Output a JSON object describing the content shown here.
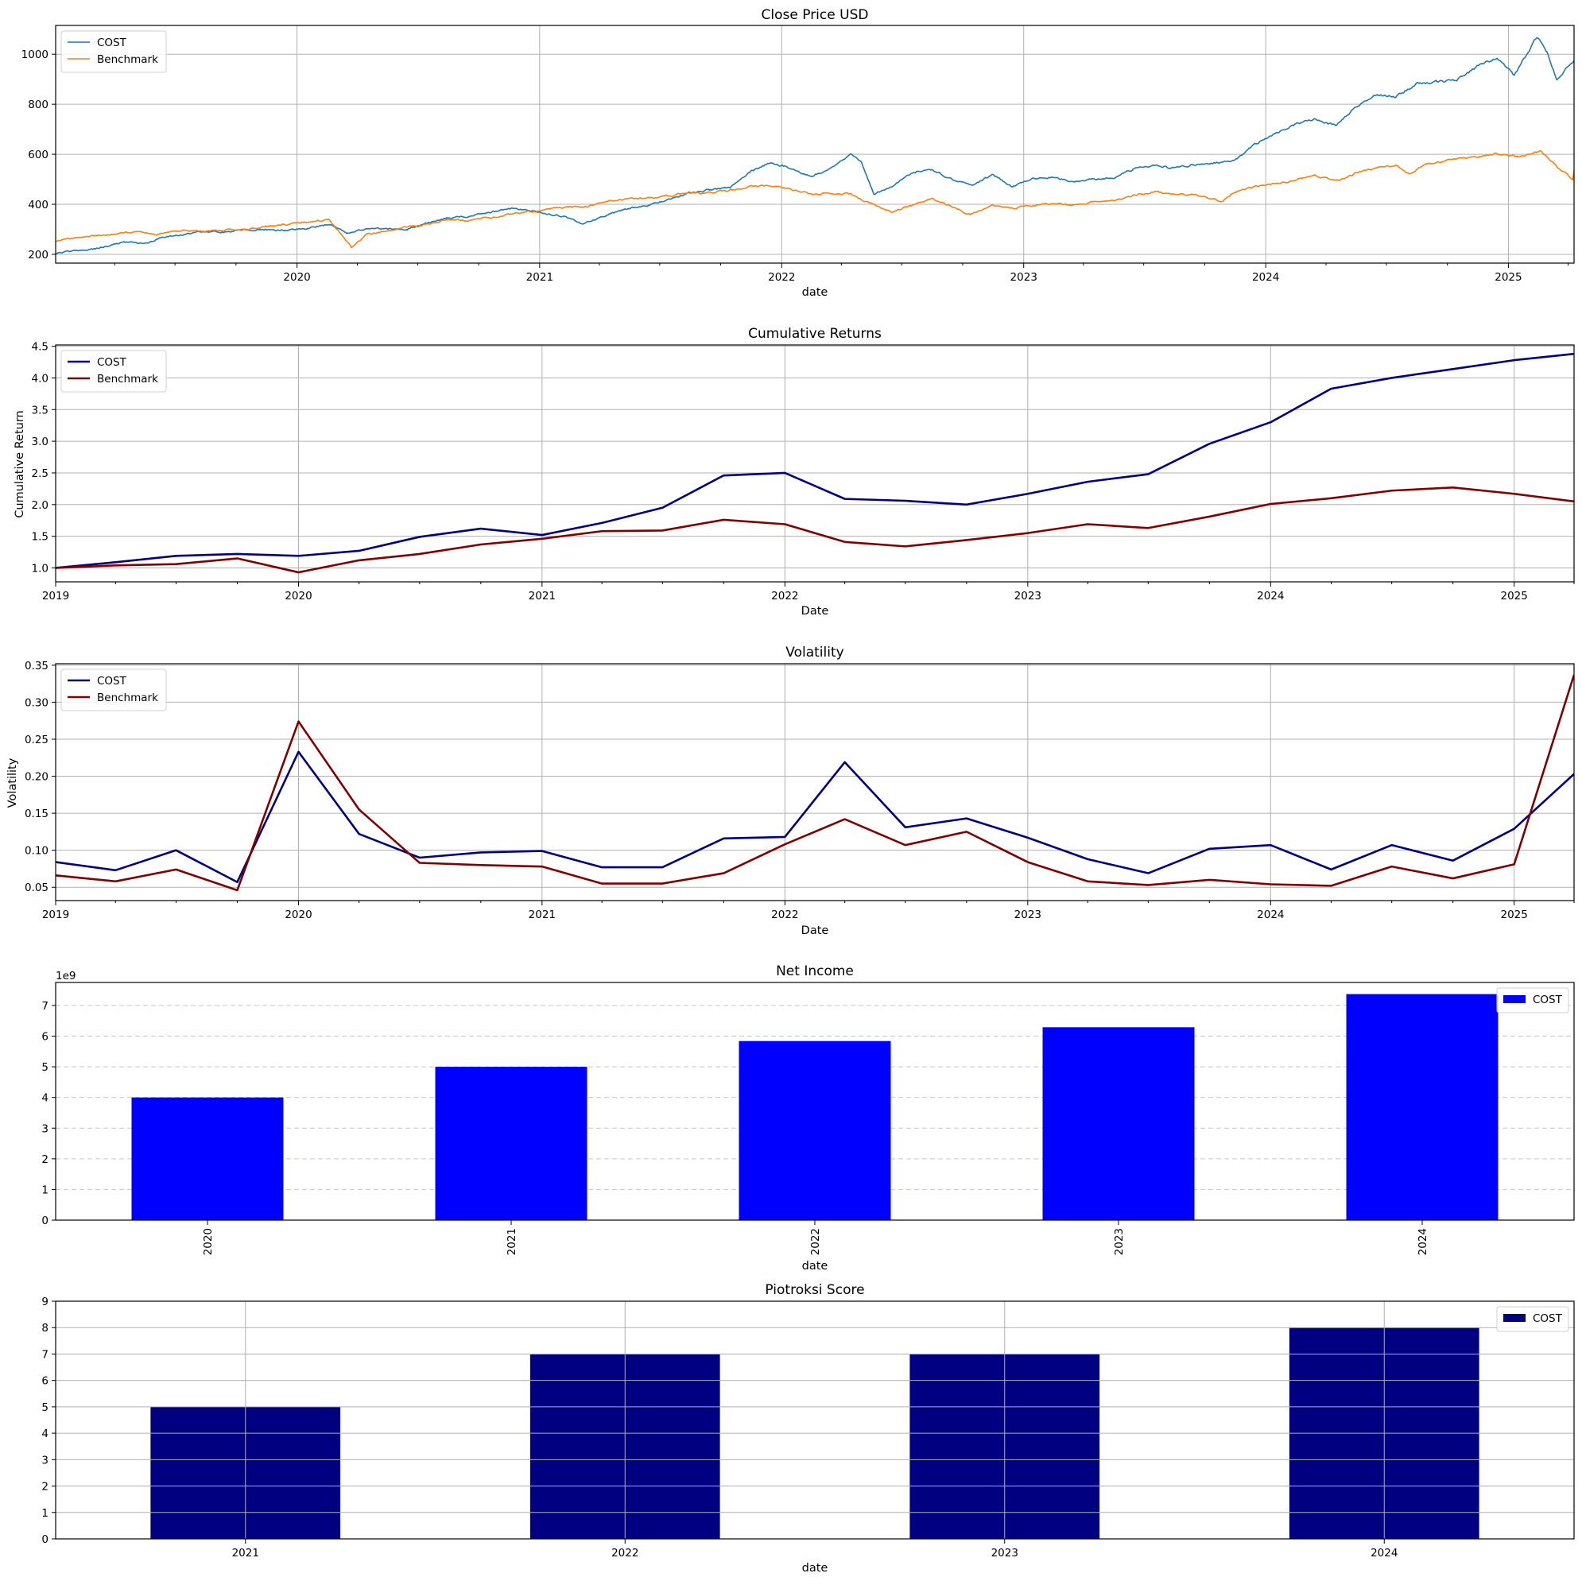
{
  "figure": {
    "background": "#ffffff"
  },
  "chart_data": [
    {
      "id": "close",
      "type": "line",
      "title": "Close Price USD",
      "xlabel": "date",
      "ylabel": "",
      "xaxis": "date",
      "xlim": [
        "2019-01-02",
        "2025-04-10"
      ],
      "ylim": [
        165,
        1115
      ],
      "yticks": [
        200,
        400,
        600,
        800,
        1000
      ],
      "xticks": [
        "2020",
        "2021",
        "2022",
        "2023",
        "2024",
        "2025"
      ],
      "grid": "both-solid",
      "legend": "top-left",
      "series": [
        {
          "name": "COST",
          "color": "#1f77b4",
          "width": 1.6,
          "daily": true,
          "points": [
            [
              "2019-01-02",
              205
            ],
            [
              "2019-03-01",
              222
            ],
            [
              "2019-04-15",
              248
            ],
            [
              "2019-05-15",
              242
            ],
            [
              "2019-06-15",
              268
            ],
            [
              "2019-07-15",
              278
            ],
            [
              "2019-08-15",
              292
            ],
            [
              "2019-09-15",
              290
            ],
            [
              "2019-10-15",
              298
            ],
            [
              "2019-11-15",
              300
            ],
            [
              "2019-12-15",
              296
            ],
            [
              "2020-01-15",
              305
            ],
            [
              "2020-02-20",
              320
            ],
            [
              "2020-03-16",
              285
            ],
            [
              "2020-04-15",
              305
            ],
            [
              "2020-05-15",
              302
            ],
            [
              "2020-06-15",
              300
            ],
            [
              "2020-07-15",
              325
            ],
            [
              "2020-08-15",
              345
            ],
            [
              "2020-09-15",
              352
            ],
            [
              "2020-10-15",
              365
            ],
            [
              "2020-11-15",
              385
            ],
            [
              "2020-12-15",
              378
            ],
            [
              "2021-01-15",
              362
            ],
            [
              "2021-02-15",
              345
            ],
            [
              "2021-03-05",
              320
            ],
            [
              "2021-04-15",
              360
            ],
            [
              "2021-05-15",
              385
            ],
            [
              "2021-06-15",
              395
            ],
            [
              "2021-07-15",
              420
            ],
            [
              "2021-08-15",
              445
            ],
            [
              "2021-09-15",
              458
            ],
            [
              "2021-10-15",
              465
            ],
            [
              "2021-11-15",
              530
            ],
            [
              "2021-12-15",
              565
            ],
            [
              "2022-01-15",
              545
            ],
            [
              "2022-02-15",
              510
            ],
            [
              "2022-03-15",
              545
            ],
            [
              "2022-04-15",
              600
            ],
            [
              "2022-05-01",
              565
            ],
            [
              "2022-05-20",
              440
            ],
            [
              "2022-06-15",
              470
            ],
            [
              "2022-07-15",
              525
            ],
            [
              "2022-08-15",
              540
            ],
            [
              "2022-09-15",
              500
            ],
            [
              "2022-10-15",
              475
            ],
            [
              "2022-11-15",
              520
            ],
            [
              "2022-12-15",
              470
            ],
            [
              "2023-01-15",
              500
            ],
            [
              "2023-02-15",
              510
            ],
            [
              "2023-03-15",
              490
            ],
            [
              "2023-04-15",
              500
            ],
            [
              "2023-05-15",
              505
            ],
            [
              "2023-06-15",
              540
            ],
            [
              "2023-07-15",
              555
            ],
            [
              "2023-08-15",
              545
            ],
            [
              "2023-09-15",
              560
            ],
            [
              "2023-10-15",
              565
            ],
            [
              "2023-11-15",
              575
            ],
            [
              "2023-12-15",
              640
            ],
            [
              "2024-01-15",
              680
            ],
            [
              "2024-02-15",
              720
            ],
            [
              "2024-03-15",
              740
            ],
            [
              "2024-04-15",
              715
            ],
            [
              "2024-05-15",
              785
            ],
            [
              "2024-06-15",
              840
            ],
            [
              "2024-07-15",
              830
            ],
            [
              "2024-08-15",
              880
            ],
            [
              "2024-09-15",
              890
            ],
            [
              "2024-10-15",
              895
            ],
            [
              "2024-11-15",
              950
            ],
            [
              "2024-12-15",
              985
            ],
            [
              "2025-01-10",
              915
            ],
            [
              "2025-02-13",
              1070
            ],
            [
              "2025-02-28",
              1010
            ],
            [
              "2025-03-15",
              900
            ],
            [
              "2025-04-10",
              975
            ]
          ]
        },
        {
          "name": "Benchmark",
          "color": "#ff7f0e",
          "width": 1.6,
          "daily": true,
          "points": [
            [
              "2019-01-02",
              252
            ],
            [
              "2019-03-01",
              275
            ],
            [
              "2019-05-01",
              290
            ],
            [
              "2019-06-03",
              278
            ],
            [
              "2019-07-15",
              298
            ],
            [
              "2019-08-15",
              292
            ],
            [
              "2019-09-15",
              298
            ],
            [
              "2019-10-15",
              302
            ],
            [
              "2019-11-15",
              310
            ],
            [
              "2019-12-15",
              320
            ],
            [
              "2020-01-15",
              330
            ],
            [
              "2020-02-19",
              338
            ],
            [
              "2020-03-23",
              228
            ],
            [
              "2020-04-15",
              280
            ],
            [
              "2020-05-15",
              295
            ],
            [
              "2020-06-15",
              310
            ],
            [
              "2020-07-15",
              320
            ],
            [
              "2020-08-15",
              340
            ],
            [
              "2020-09-15",
              335
            ],
            [
              "2020-10-15",
              345
            ],
            [
              "2020-11-15",
              360
            ],
            [
              "2020-12-15",
              370
            ],
            [
              "2021-01-15",
              380
            ],
            [
              "2021-02-15",
              390
            ],
            [
              "2021-03-15",
              390
            ],
            [
              "2021-04-15",
              415
            ],
            [
              "2021-05-15",
              420
            ],
            [
              "2021-06-15",
              425
            ],
            [
              "2021-07-15",
              435
            ],
            [
              "2021-08-15",
              445
            ],
            [
              "2021-09-15",
              445
            ],
            [
              "2021-10-15",
              455
            ],
            [
              "2021-11-15",
              470
            ],
            [
              "2021-12-15",
              475
            ],
            [
              "2022-01-15",
              460
            ],
            [
              "2022-02-15",
              440
            ],
            [
              "2022-03-15",
              445
            ],
            [
              "2022-04-15",
              440
            ],
            [
              "2022-05-15",
              405
            ],
            [
              "2022-06-16",
              370
            ],
            [
              "2022-07-15",
              395
            ],
            [
              "2022-08-15",
              425
            ],
            [
              "2022-09-15",
              390
            ],
            [
              "2022-10-12",
              358
            ],
            [
              "2022-11-15",
              395
            ],
            [
              "2022-12-15",
              385
            ],
            [
              "2023-01-15",
              395
            ],
            [
              "2023-02-15",
              405
            ],
            [
              "2023-03-15",
              395
            ],
            [
              "2023-04-15",
              410
            ],
            [
              "2023-05-15",
              415
            ],
            [
              "2023-06-15",
              435
            ],
            [
              "2023-07-15",
              450
            ],
            [
              "2023-08-15",
              440
            ],
            [
              "2023-09-15",
              440
            ],
            [
              "2023-10-27",
              412
            ],
            [
              "2023-11-15",
              450
            ],
            [
              "2023-12-15",
              470
            ],
            [
              "2024-01-15",
              480
            ],
            [
              "2024-02-15",
              500
            ],
            [
              "2024-03-15",
              515
            ],
            [
              "2024-04-19",
              495
            ],
            [
              "2024-05-15",
              525
            ],
            [
              "2024-06-15",
              545
            ],
            [
              "2024-07-15",
              555
            ],
            [
              "2024-08-05",
              520
            ],
            [
              "2024-08-30",
              560
            ],
            [
              "2024-09-15",
              565
            ],
            [
              "2024-10-15",
              580
            ],
            [
              "2024-11-15",
              590
            ],
            [
              "2024-12-15",
              600
            ],
            [
              "2025-01-15",
              590
            ],
            [
              "2025-02-18",
              612
            ],
            [
              "2025-03-13",
              555
            ],
            [
              "2025-04-08",
              500
            ],
            [
              "2025-04-10",
              535
            ]
          ]
        }
      ]
    },
    {
      "id": "cumret",
      "type": "line",
      "title": "Cumulative Returns",
      "xlabel": "Date",
      "ylabel": "Cumulative Return",
      "xaxis": "date",
      "xlim": [
        "2019-01-01",
        "2025-04-01"
      ],
      "ylim": [
        0.78,
        4.52
      ],
      "yticks": [
        1.0,
        1.5,
        2.0,
        2.5,
        3.0,
        3.5,
        4.0,
        4.5
      ],
      "ytick_decimals": 1,
      "xticks": [
        "2019",
        "2020",
        "2021",
        "2022",
        "2023",
        "2024",
        "2025"
      ],
      "grid": "both-solid",
      "legend": "top-left",
      "x": [
        "2019-01-01",
        "2019-04-01",
        "2019-07-01",
        "2019-10-01",
        "2020-01-01",
        "2020-04-01",
        "2020-07-01",
        "2020-10-01",
        "2021-01-01",
        "2021-04-01",
        "2021-07-01",
        "2021-10-01",
        "2022-01-01",
        "2022-04-01",
        "2022-07-01",
        "2022-10-01",
        "2023-01-01",
        "2023-04-01",
        "2023-07-01",
        "2023-10-01",
        "2024-01-01",
        "2024-04-01",
        "2024-07-01",
        "2024-10-01",
        "2025-01-01",
        "2025-04-01"
      ],
      "series": [
        {
          "name": "COST",
          "color": "#000080",
          "width": 2.6,
          "values": [
            1.0,
            1.09,
            1.19,
            1.22,
            1.19,
            1.27,
            1.49,
            1.62,
            1.52,
            1.71,
            1.95,
            2.46,
            2.5,
            2.09,
            2.06,
            2.0,
            2.17,
            2.36,
            2.48,
            2.96,
            3.3,
            3.83,
            4.0,
            4.14,
            4.28,
            4.38
          ]
        },
        {
          "name": "Benchmark",
          "color": "#800000",
          "width": 2.6,
          "values": [
            1.0,
            1.04,
            1.06,
            1.15,
            0.93,
            1.12,
            1.22,
            1.37,
            1.46,
            1.58,
            1.59,
            1.76,
            1.69,
            1.41,
            1.34,
            1.44,
            1.55,
            1.69,
            1.63,
            1.81,
            2.01,
            2.1,
            2.22,
            2.27,
            2.17,
            2.05
          ]
        }
      ]
    },
    {
      "id": "vol",
      "type": "line",
      "title": "Volatility",
      "xlabel": "Date",
      "ylabel": "Volatility",
      "xaxis": "date",
      "xlim": [
        "2019-01-01",
        "2025-04-01"
      ],
      "ylim": [
        0.032,
        0.352
      ],
      "yticks": [
        0.05,
        0.1,
        0.15,
        0.2,
        0.25,
        0.3,
        0.35
      ],
      "ytick_decimals": 2,
      "xticks": [
        "2019",
        "2020",
        "2021",
        "2022",
        "2023",
        "2024",
        "2025"
      ],
      "grid": "both-solid",
      "legend": "top-left",
      "x": [
        "2019-01-01",
        "2019-04-01",
        "2019-07-01",
        "2019-10-01",
        "2020-01-01",
        "2020-04-01",
        "2020-07-01",
        "2020-10-01",
        "2021-01-01",
        "2021-04-01",
        "2021-07-01",
        "2021-10-01",
        "2022-01-01",
        "2022-04-01",
        "2022-07-01",
        "2022-10-01",
        "2023-01-01",
        "2023-04-01",
        "2023-07-01",
        "2023-10-01",
        "2024-01-01",
        "2024-04-01",
        "2024-07-01",
        "2024-10-01",
        "2025-01-01",
        "2025-04-01"
      ],
      "series": [
        {
          "name": "COST",
          "color": "#000080",
          "width": 2.6,
          "values": [
            0.084,
            0.073,
            0.1,
            0.057,
            0.233,
            0.122,
            0.09,
            0.097,
            0.099,
            0.077,
            0.077,
            0.116,
            0.118,
            0.219,
            0.131,
            0.143,
            0.117,
            0.088,
            0.069,
            0.102,
            0.107,
            0.074,
            0.107,
            0.086,
            0.129,
            0.203
          ]
        },
        {
          "name": "Benchmark",
          "color": "#800000",
          "width": 2.6,
          "values": [
            0.066,
            0.058,
            0.074,
            0.046,
            0.274,
            0.155,
            0.083,
            0.08,
            0.078,
            0.055,
            0.055,
            0.069,
            0.108,
            0.142,
            0.107,
            0.125,
            0.084,
            0.058,
            0.053,
            0.06,
            0.054,
            0.052,
            0.078,
            0.062,
            0.081,
            0.337
          ]
        }
      ]
    },
    {
      "id": "netincome",
      "type": "bar",
      "title": "Net Income",
      "xlabel": "date",
      "ylabel": "",
      "offset_text": "1e9",
      "categories": [
        "2020",
        "2021",
        "2022",
        "2023",
        "2024"
      ],
      "category_rotation": -90,
      "ylim": [
        0,
        7750000000.0
      ],
      "yticks": [
        0,
        1000000000.0,
        2000000000.0,
        3000000000.0,
        4000000000.0,
        5000000000.0,
        6000000000.0,
        7000000000.0
      ],
      "ytick_labels": [
        "0",
        "1",
        "2",
        "3",
        "4",
        "5",
        "6",
        "7"
      ],
      "grid": "y-dashed",
      "legend": "top-right",
      "series": [
        {
          "name": "COST",
          "color": "#0000ff",
          "values": [
            4000000000.0,
            5000000000.0,
            5840000000.0,
            6290000000.0,
            7370000000.0
          ]
        }
      ]
    },
    {
      "id": "piotroski",
      "type": "bar",
      "title": "Piotroksi Score",
      "xlabel": "date",
      "ylabel": "",
      "categories": [
        "2021",
        "2022",
        "2023",
        "2024"
      ],
      "category_rotation": 0,
      "ylim": [
        0,
        9
      ],
      "yticks": [
        0,
        1,
        2,
        3,
        4,
        5,
        6,
        7,
        8,
        9
      ],
      "ytick_labels": [
        "0",
        "1",
        "2",
        "3",
        "4",
        "5",
        "6",
        "7",
        "8",
        "9"
      ],
      "grid": "both-solid",
      "legend": "top-right",
      "series": [
        {
          "name": "COST",
          "color": "#000080",
          "values": [
            5,
            7,
            7,
            8
          ]
        }
      ]
    }
  ]
}
